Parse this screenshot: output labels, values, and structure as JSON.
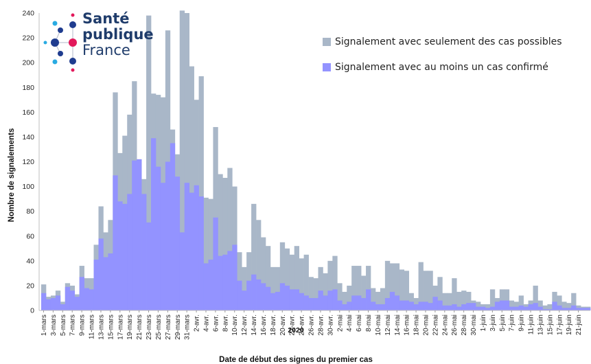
{
  "chart_data": {
    "type": "bar",
    "stacked_overlap": true,
    "logo": {
      "line1": "Santé",
      "line2": "publique",
      "line3": "France"
    },
    "xlabel": "Date de début des signes du premier cas",
    "year_label": "2020",
    "ylabel": "Nombre de signalements",
    "ylim": [
      0,
      240
    ],
    "yticks": [
      0,
      20,
      40,
      60,
      80,
      100,
      120,
      140,
      160,
      180,
      200,
      220,
      240
    ],
    "grid": false,
    "legend_position": "top-right",
    "colors": {
      "possible": "#a9b7c8",
      "confirmed": "#9393ff"
    },
    "series": [
      {
        "name": "Signalement avec seulement des cas possibles",
        "key": "total"
      },
      {
        "name": "Signalement avec au moins un cas confirmé",
        "key": "confirmed"
      }
    ],
    "tick_labels": [
      "1-mars",
      "3-mars",
      "5-mars",
      "7-mars",
      "9-mars",
      "11-mars",
      "13-mars",
      "15-mars",
      "17-mars",
      "19-mars",
      "21-mars",
      "23-mars",
      "25-mars",
      "27-mars",
      "29-mars",
      "31-mars",
      "2-avr.",
      "4-avr.",
      "6-avr.",
      "8-avr.",
      "10-avr.",
      "12-avr.",
      "14-avr.",
      "16-avr.",
      "18-avr.",
      "20-avr.",
      "22-avr.",
      "24-avr.",
      "26-avr.",
      "28-avr.",
      "30-avr.",
      "2-mai",
      "4-mai",
      "6-mai",
      "8-mai",
      "10-mai",
      "12-mai",
      "14-mai",
      "16-mai",
      "18-mai",
      "20-mai",
      "22-mai",
      "24-mai",
      "26-mai",
      "28-mai",
      "30-mai",
      "1-juin",
      "3-juin",
      "5-juin",
      "7-juin",
      "9-juin",
      "11-juin",
      "13-juin",
      "15-juin",
      "17-juin",
      "19-juin",
      "21-juin"
    ],
    "total": [
      21,
      11,
      12,
      16,
      7,
      22,
      20,
      13,
      36,
      26,
      26,
      53,
      84,
      63,
      73,
      176,
      127,
      141,
      158,
      185,
      122,
      106,
      238,
      175,
      174,
      172,
      226,
      146,
      126,
      242,
      240,
      197,
      170,
      189,
      91,
      90,
      148,
      110,
      107,
      115,
      100,
      47,
      35,
      47,
      86,
      73,
      59,
      52,
      35,
      35,
      55,
      50,
      45,
      52,
      42,
      45,
      27,
      26,
      35,
      30,
      40,
      44,
      22,
      15,
      20,
      36,
      36,
      28,
      36,
      18,
      15,
      18,
      40,
      38,
      38,
      33,
      32,
      14,
      10,
      39,
      32,
      32,
      20,
      27,
      14,
      14,
      26,
      15,
      16,
      15,
      8,
      7,
      5,
      5,
      17,
      10,
      17,
      17,
      8,
      7,
      12,
      5,
      8,
      20,
      8,
      4,
      5,
      15,
      12,
      7,
      6,
      14,
      4,
      3,
      3
    ],
    "confirmed": [
      14,
      9,
      10,
      12,
      5,
      19,
      16,
      11,
      27,
      18,
      17,
      41,
      58,
      43,
      46,
      109,
      88,
      86,
      94,
      121,
      122,
      94,
      71,
      139,
      116,
      103,
      120,
      135,
      108,
      63,
      103,
      95,
      101,
      92,
      38,
      41,
      75,
      44,
      45,
      48,
      53,
      24,
      16,
      24,
      29,
      25,
      22,
      19,
      14,
      15,
      22,
      20,
      17,
      17,
      14,
      12,
      10,
      10,
      16,
      12,
      16,
      17,
      8,
      5,
      7,
      12,
      12,
      10,
      17,
      7,
      5,
      5,
      10,
      15,
      12,
      8,
      8,
      7,
      5,
      7,
      7,
      6,
      11,
      8,
      4,
      4,
      5,
      3,
      5,
      6,
      6,
      3,
      3,
      2,
      3,
      7,
      8,
      8,
      3,
      3,
      4,
      3,
      5,
      6,
      3,
      1,
      1,
      7,
      4,
      2,
      2,
      4,
      2,
      2,
      2
    ]
  }
}
